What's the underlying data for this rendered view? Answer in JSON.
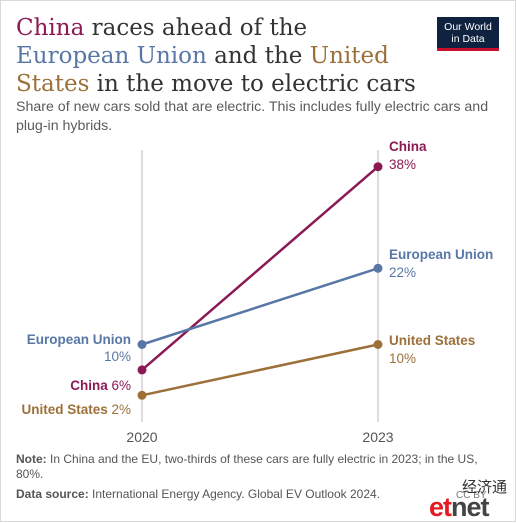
{
  "title": {
    "china": "China",
    "part1": " races ahead of the ",
    "eu": "European Union",
    "part2": " and the ",
    "us": "United States",
    "part3": " in the move to electric cars"
  },
  "logo": {
    "line1": "Our World",
    "line2": "in Data"
  },
  "subtitle": "Share of new cars sold that are electric. This includes fully electric cars and plug-in hybrids.",
  "chart_data": {
    "type": "line",
    "title": "China races ahead of the European Union and the United States in the move to electric cars",
    "subtitle": "Share of new cars sold that are electric. This includes fully electric cars and plug-in hybrids.",
    "x": [
      2020,
      2023
    ],
    "x_tick_labels": [
      "2020",
      "2023"
    ],
    "unit": "%",
    "series": [
      {
        "name": "China",
        "values": [
          6,
          38
        ],
        "labels": [
          "China 6%",
          "38%"
        ],
        "color": "#8b1a54"
      },
      {
        "name": "European Union",
        "values": [
          10,
          22
        ],
        "labels": [
          "10%",
          "22%"
        ],
        "color": "#5877a6"
      },
      {
        "name": "United States",
        "values": [
          2,
          10
        ],
        "labels": [
          "United States 2%",
          "10%"
        ],
        "color": "#9c7038"
      }
    ],
    "grid": "vertical lines at each year",
    "legend": "direct labels at line ends"
  },
  "note": {
    "label": "Note:",
    "text": " In China and the EU, two-thirds of these cars are fully electric in 2023; in the US, 80%."
  },
  "source": {
    "label": "Data source:",
    "text": " International Energy Agency. Global EV Outlook 2024."
  },
  "license": "CC BY",
  "watermark": {
    "cn": "经济通",
    "brand_a": "et",
    "brand_b": "net"
  }
}
